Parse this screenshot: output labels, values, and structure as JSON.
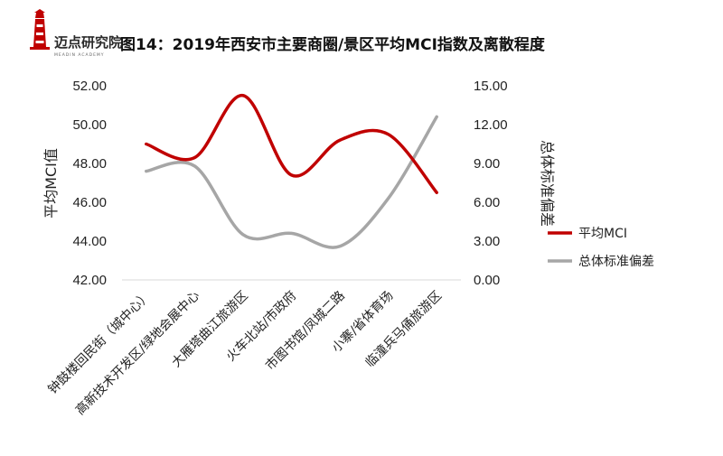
{
  "logo": {
    "text": "迈点研究院",
    "subtext": "MEADIN ACADEMY"
  },
  "chart_data": {
    "type": "line",
    "title": "图14：2019年西安市主要商圈/景区平均MCI指数及离散程度",
    "categories": [
      "钟鼓楼回民街（城中心）",
      "高新技术开发区/绿地会展中心",
      "大雁塔曲江旅游区",
      "火车北站/市政府",
      "市图书馆/凤城二路",
      "小寨/省体育场",
      "临潼兵马俑旅游区"
    ],
    "ylabel": "平均MCI值",
    "y2label": "总体标准偏差",
    "ylim": [
      42,
      52
    ],
    "y2lim": [
      0,
      15
    ],
    "yticks": [
      "42.00",
      "44.00",
      "46.00",
      "48.00",
      "50.00",
      "52.00"
    ],
    "y2ticks": [
      "0.00",
      "3.00",
      "6.00",
      "9.00",
      "12.00",
      "15.00"
    ],
    "grid": false,
    "legend_position": "right",
    "series": [
      {
        "name": "平均MCI",
        "axis": "left",
        "color": "#c00000",
        "values": [
          49.0,
          48.3,
          51.5,
          47.4,
          49.2,
          49.5,
          46.5
        ]
      },
      {
        "name": "总体标准偏差",
        "axis": "right",
        "color": "#a6a6a6",
        "values": [
          8.4,
          8.8,
          3.5,
          3.6,
          2.6,
          6.3,
          12.6
        ]
      }
    ]
  }
}
